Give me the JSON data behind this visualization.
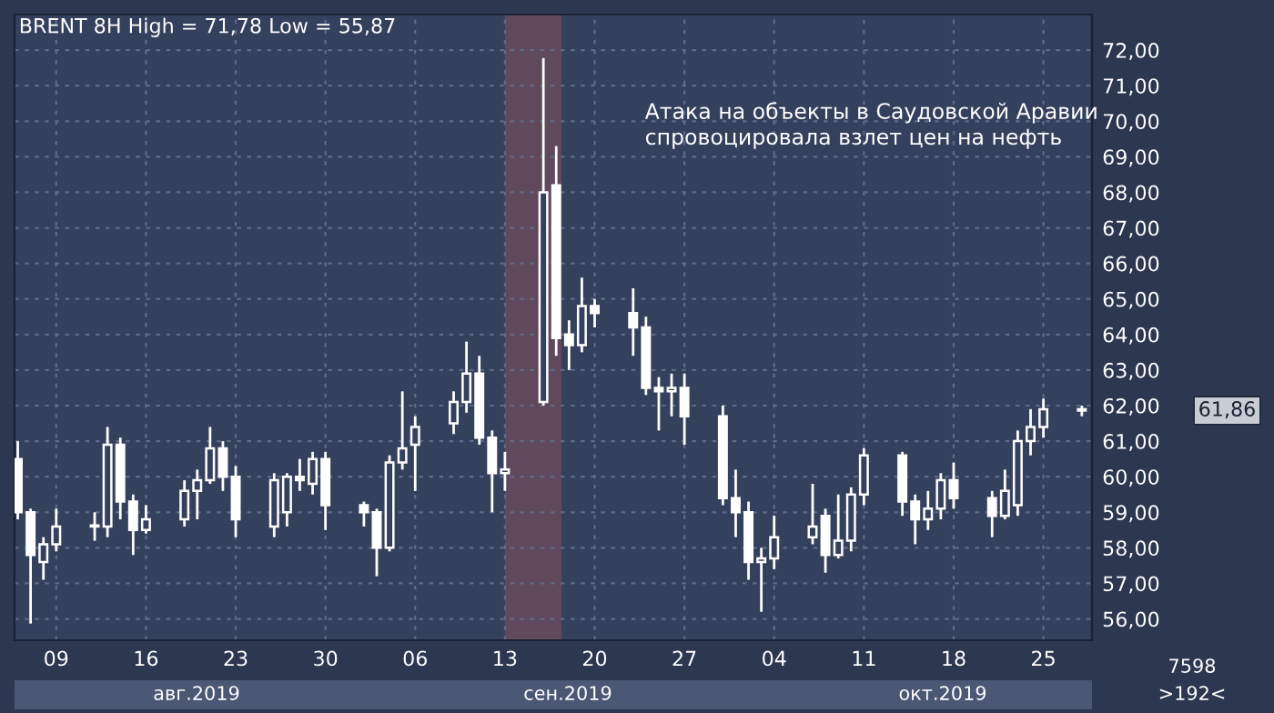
{
  "chart_data": {
    "type": "candlestick",
    "title": "BRENT 8H High = 71,78 Low = 55,87",
    "x": [
      "2019-08-06",
      "2019-08-07",
      "2019-08-08",
      "2019-08-09",
      "2019-08-12",
      "2019-08-13",
      "2019-08-14",
      "2019-08-15",
      "2019-08-16",
      "2019-08-19",
      "2019-08-20",
      "2019-08-21",
      "2019-08-22",
      "2019-08-23",
      "2019-08-26",
      "2019-08-27",
      "2019-08-28",
      "2019-08-29",
      "2019-08-30",
      "2019-09-02",
      "2019-09-03",
      "2019-09-04",
      "2019-09-05",
      "2019-09-06",
      "2019-09-09",
      "2019-09-10",
      "2019-09-11",
      "2019-09-12",
      "2019-09-13",
      "2019-09-16",
      "2019-09-17",
      "2019-09-18",
      "2019-09-19",
      "2019-09-20",
      "2019-09-23",
      "2019-09-24",
      "2019-09-25",
      "2019-09-26",
      "2019-09-27",
      "2019-09-30",
      "2019-10-01",
      "2019-10-02",
      "2019-10-03",
      "2019-10-04",
      "2019-10-07",
      "2019-10-08",
      "2019-10-09",
      "2019-10-10",
      "2019-10-11",
      "2019-10-14",
      "2019-10-15",
      "2019-10-16",
      "2019-10-17",
      "2019-10-18",
      "2019-10-21",
      "2019-10-22",
      "2019-10-23",
      "2019-10-24",
      "2019-10-25",
      "2019-10-28"
    ],
    "series": [
      {
        "color": "#ffffff",
        "ohlc": [
          [
            60.5,
            61.0,
            58.8,
            59.0
          ],
          [
            59.0,
            59.1,
            55.87,
            57.8
          ],
          [
            57.6,
            58.3,
            57.1,
            58.1
          ],
          [
            58.1,
            59.1,
            57.9,
            58.6
          ],
          [
            58.6,
            59.0,
            58.2,
            58.6
          ],
          [
            58.6,
            61.4,
            58.3,
            60.9
          ],
          [
            60.9,
            61.1,
            58.8,
            59.3
          ],
          [
            59.3,
            59.5,
            57.8,
            58.5
          ],
          [
            58.5,
            59.2,
            58.4,
            58.8
          ],
          [
            58.8,
            59.9,
            58.6,
            59.6
          ],
          [
            59.6,
            60.2,
            58.8,
            59.9
          ],
          [
            59.9,
            61.4,
            59.8,
            60.8
          ],
          [
            60.8,
            61.0,
            59.6,
            60.0
          ],
          [
            60.0,
            60.3,
            58.3,
            58.8
          ],
          [
            58.6,
            60.1,
            58.3,
            59.9
          ],
          [
            59.0,
            60.1,
            58.6,
            60.0
          ],
          [
            60.0,
            60.5,
            59.6,
            59.9
          ],
          [
            59.8,
            60.7,
            59.5,
            60.5
          ],
          [
            60.5,
            60.7,
            58.5,
            59.2
          ],
          [
            59.2,
            59.3,
            58.6,
            59.0
          ],
          [
            59.0,
            59.1,
            57.2,
            58.0
          ],
          [
            58.0,
            60.6,
            57.9,
            60.4
          ],
          [
            60.4,
            62.4,
            60.2,
            60.8
          ],
          [
            60.9,
            61.7,
            59.6,
            61.4
          ],
          [
            61.5,
            62.4,
            61.2,
            62.1
          ],
          [
            62.1,
            63.8,
            61.8,
            62.9
          ],
          [
            62.9,
            63.4,
            60.9,
            61.1
          ],
          [
            61.1,
            61.3,
            59.0,
            60.1
          ],
          [
            60.1,
            60.7,
            59.6,
            60.2
          ],
          [
            62.1,
            71.78,
            62.0,
            68.0
          ],
          [
            68.2,
            69.3,
            63.4,
            63.9
          ],
          [
            64.0,
            64.4,
            63.0,
            63.7
          ],
          [
            63.7,
            65.6,
            63.5,
            64.8
          ],
          [
            64.8,
            65.0,
            64.2,
            64.6
          ],
          [
            64.6,
            65.3,
            63.4,
            64.2
          ],
          [
            64.2,
            64.5,
            62.3,
            62.5
          ],
          [
            62.5,
            62.8,
            61.3,
            62.4
          ],
          [
            62.4,
            62.9,
            61.7,
            62.5
          ],
          [
            62.5,
            62.9,
            60.9,
            61.7
          ],
          [
            61.7,
            62.0,
            59.2,
            59.4
          ],
          [
            59.4,
            60.2,
            58.3,
            59.0
          ],
          [
            59.0,
            59.3,
            57.1,
            57.6
          ],
          [
            57.6,
            58.0,
            56.2,
            57.7
          ],
          [
            57.7,
            58.9,
            57.4,
            58.3
          ],
          [
            58.3,
            59.8,
            58.1,
            58.6
          ],
          [
            58.9,
            59.1,
            57.3,
            57.8
          ],
          [
            57.8,
            59.5,
            57.7,
            58.2
          ],
          [
            58.2,
            59.7,
            57.9,
            59.5
          ],
          [
            59.5,
            60.8,
            59.2,
            60.6
          ],
          [
            60.6,
            60.7,
            58.9,
            59.3
          ],
          [
            59.3,
            59.5,
            58.1,
            58.8
          ],
          [
            58.8,
            59.6,
            58.5,
            59.1
          ],
          [
            59.1,
            60.1,
            58.8,
            59.9
          ],
          [
            59.9,
            60.4,
            59.1,
            59.4
          ],
          [
            59.4,
            59.6,
            58.3,
            58.9
          ],
          [
            58.9,
            60.2,
            58.8,
            59.6
          ],
          [
            59.2,
            61.3,
            58.9,
            61.0
          ],
          [
            61.0,
            61.9,
            60.6,
            61.4
          ],
          [
            61.4,
            62.2,
            61.1,
            61.9
          ],
          [
            61.9,
            62.0,
            61.7,
            61.86
          ]
        ]
      }
    ],
    "xlim": [
      "2019-08-05T18:00",
      "2019-10-28T19:00"
    ],
    "xticks": [
      {
        "value": "2019-08-09",
        "label": "09"
      },
      {
        "value": "2019-08-16",
        "label": "16"
      },
      {
        "value": "2019-08-23",
        "label": "23"
      },
      {
        "value": "2019-08-30",
        "label": "30"
      },
      {
        "value": "2019-09-06",
        "label": "06"
      },
      {
        "value": "2019-09-13",
        "label": "13"
      },
      {
        "value": "2019-09-20",
        "label": "20"
      },
      {
        "value": "2019-09-27",
        "label": "27"
      },
      {
        "value": "2019-10-04",
        "label": "04"
      },
      {
        "value": "2019-10-11",
        "label": "11"
      },
      {
        "value": "2019-10-18",
        "label": "18"
      },
      {
        "value": "2019-10-25",
        "label": "25"
      }
    ],
    "ylim": [
      55.4,
      73.0
    ],
    "yticks": [
      {
        "value": 56,
        "label": "56,00"
      },
      {
        "value": 57,
        "label": "57,00"
      },
      {
        "value": 58,
        "label": "58,00"
      },
      {
        "value": 59,
        "label": "59,00"
      },
      {
        "value": 60,
        "label": "60,00"
      },
      {
        "value": 61,
        "label": "61,00"
      },
      {
        "value": 62,
        "label": "62,00"
      },
      {
        "value": 63,
        "label": "63,00"
      },
      {
        "value": 64,
        "label": "64,00"
      },
      {
        "value": 65,
        "label": "65,00"
      },
      {
        "value": 66,
        "label": "66,00"
      },
      {
        "value": 67,
        "label": "67,00"
      },
      {
        "value": 68,
        "label": "68,00"
      },
      {
        "value": 69,
        "label": "69,00"
      },
      {
        "value": 70,
        "label": "70,00"
      },
      {
        "value": 71,
        "label": "71,00"
      },
      {
        "value": 72,
        "label": "72,00"
      }
    ],
    "bands": [
      {
        "axis": "x",
        "from": "2019-09-13",
        "to": "2019-09-17T10:00",
        "color": "#6b4a5e"
      }
    ],
    "grid": true,
    "annotations": [
      "Атака на объекты в Саудовской Аравии\nспровоцировала взлет цен на нефть",
      "авг.2019",
      "сен.2019",
      "окт.2019",
      "7598",
      ">192<",
      "61,86"
    ]
  }
}
